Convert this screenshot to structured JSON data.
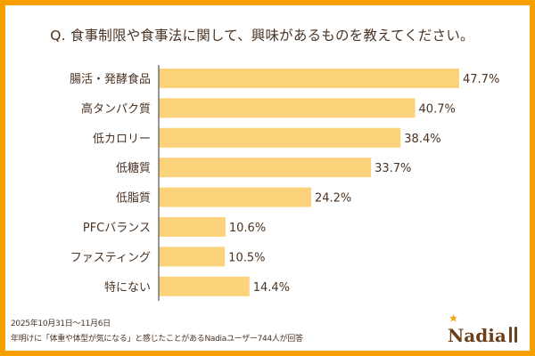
{
  "chart_data": {
    "type": "bar",
    "orientation": "horizontal",
    "title": "Q. 食事制限や食事法に関して、興味があるものを教えてください。",
    "categories": [
      "腸活・発酵食品",
      "高タンパク質",
      "低カロリー",
      "低糖質",
      "低脂質",
      "PFCバランス",
      "ファスティング",
      "特にない"
    ],
    "values": [
      47.7,
      40.7,
      38.4,
      33.7,
      24.2,
      10.6,
      10.5,
      14.4
    ],
    "data_labels": [
      "47.7%",
      "40.7%",
      "38.4%",
      "33.7%",
      "24.2%",
      "10.6%",
      "10.5%",
      "14.4%"
    ],
    "unit": "%",
    "xlim": [
      0,
      50
    ],
    "grid": false,
    "bar_color": "#fcd27a"
  },
  "footer": {
    "date": "2025年10月31日〜11月6日",
    "note": "年明けに「体重や体型が気になる」と感じたことがあるNadiaユーザー744人が回答"
  },
  "logo": {
    "text": "Nadia"
  },
  "colors": {
    "border": "#f5a000",
    "text": "#4a3322"
  }
}
